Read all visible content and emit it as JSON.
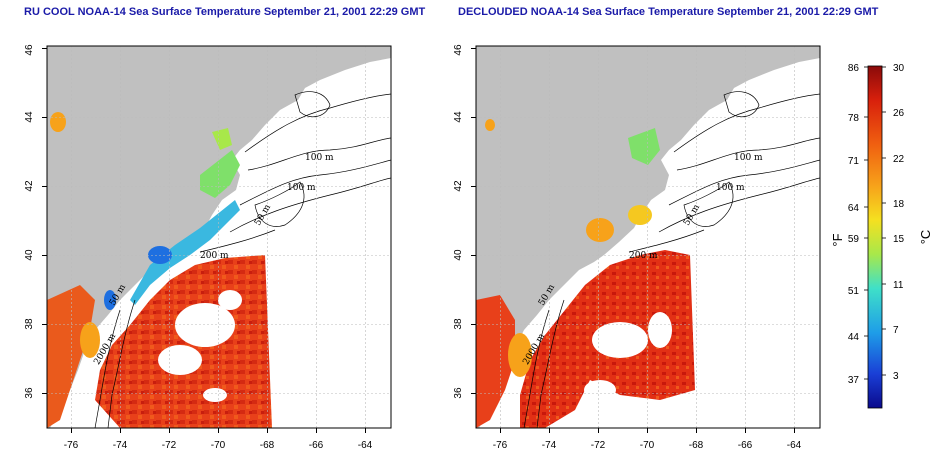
{
  "panels": [
    {
      "title": "RU COOL NOAA-14 Sea Surface Temperature September 21, 2001 22:29 GMT",
      "lon_ticks": [
        "-76",
        "-74",
        "-72",
        "-70",
        "-68",
        "-66",
        "-64"
      ],
      "lat_ticks": [
        "36",
        "38",
        "40",
        "42",
        "44",
        "46"
      ],
      "contour_labels": [
        "100 m",
        "100 m",
        "50 m",
        "200 m",
        "50 m",
        "2000 m"
      ]
    },
    {
      "title": "DECLOUDED NOAA-14 Sea Surface Temperature September 21, 2001 22:29 GMT",
      "lon_ticks": [
        "-76",
        "-74",
        "-72",
        "-70",
        "-68",
        "-66",
        "-64"
      ],
      "lat_ticks": [
        "36",
        "38",
        "40",
        "42",
        "44",
        "46"
      ],
      "contour_labels": [
        "100 m",
        "100 m",
        "50 m",
        "200 m",
        "50 m",
        "2000 m"
      ]
    }
  ],
  "colorbar": {
    "fahrenheit_label": "°F",
    "celsius_label": "°C",
    "fahrenheit_ticks": [
      "86",
      "78",
      "71",
      "64",
      "59",
      "51",
      "44",
      "37"
    ],
    "celsius_ticks": [
      "30",
      "26",
      "22",
      "18",
      "15",
      "11",
      "7",
      "3"
    ],
    "colors": [
      "#0a0a8c",
      "#1a3fd6",
      "#1e9de8",
      "#3fe0c8",
      "#a8e84a",
      "#f5e020",
      "#f7a21a",
      "#f06010",
      "#d8200c",
      "#8a0a0a"
    ]
  },
  "colors": {
    "land": "#c0c0c0",
    "ocean_warm": "#e8401a",
    "title": "#1a1aa8"
  }
}
